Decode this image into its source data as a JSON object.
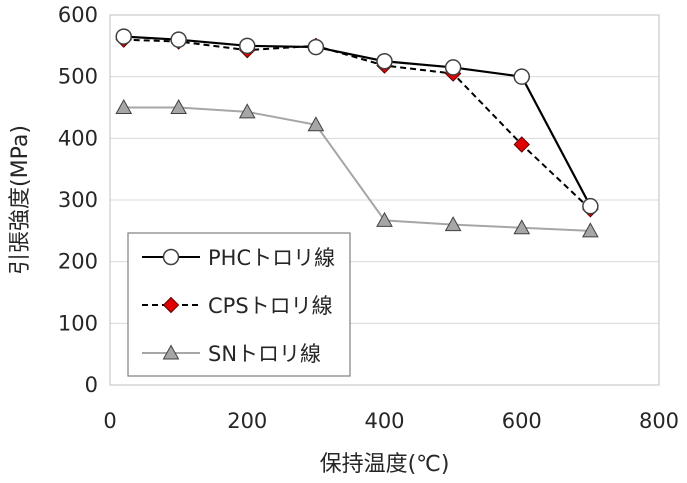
{
  "chart_data": {
    "type": "line",
    "title": "",
    "xlabel": "保持温度(℃)",
    "ylabel": "引張強度(MPa)",
    "xlim": [
      0,
      800
    ],
    "ylim": [
      0,
      600
    ],
    "xticks": [
      0,
      200,
      400,
      600,
      800
    ],
    "yticks": [
      0,
      100,
      200,
      300,
      400,
      500,
      600
    ],
    "grid": true,
    "legend_position": "bottom-left",
    "series": [
      {
        "name": "PHCトロリ線",
        "x": [
          20,
          100,
          200,
          300,
          400,
          500,
          600,
          700
        ],
        "y": [
          565,
          560,
          550,
          548,
          525,
          515,
          500,
          290
        ],
        "line_color": "#000000",
        "line_style": "solid",
        "marker": "circle",
        "marker_fill": "#ffffff",
        "marker_stroke": "#404040"
      },
      {
        "name": "CPSトロリ線",
        "x": [
          20,
          100,
          200,
          300,
          400,
          500,
          600,
          700
        ],
        "y": [
          560,
          557,
          543,
          550,
          518,
          505,
          390,
          285
        ],
        "line_color": "#000000",
        "line_style": "dashed",
        "marker": "diamond",
        "marker_fill": "#e00000",
        "marker_stroke": "#600000"
      },
      {
        "name": "SNトロリ線",
        "x": [
          20,
          100,
          200,
          300,
          400,
          500,
          600,
          700
        ],
        "y": [
          450,
          450,
          443,
          422,
          267,
          260,
          255,
          250
        ],
        "line_color": "#a6a6a6",
        "line_style": "solid",
        "marker": "triangle",
        "marker_fill": "#a6a6a6",
        "marker_stroke": "#404040"
      }
    ]
  }
}
